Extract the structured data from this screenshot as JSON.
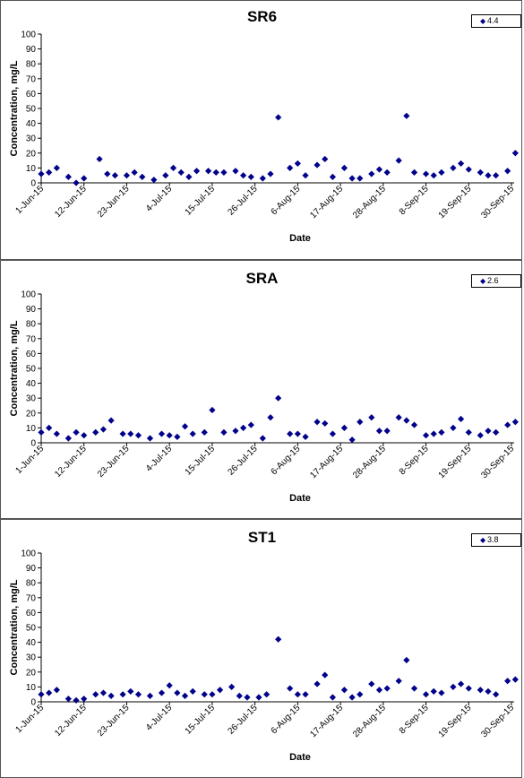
{
  "marker_color": "#00008b",
  "chart_data": [
    {
      "type": "scatter",
      "title": "SR6",
      "xlabel": "Date",
      "ylabel": "Concentration, mg/L",
      "ylim": [
        0,
        100
      ],
      "yticks": [
        "0",
        "10",
        "20",
        "30",
        "40",
        "50",
        "60",
        "70",
        "80",
        "90",
        "100"
      ],
      "xticks": [
        "1-Jun-15",
        "12-Jun-15",
        "23-Jun-15",
        "4-Jul-15",
        "15-Jul-15",
        "26-Jul-15",
        "6-Aug-15",
        "17-Aug-15",
        "28-Aug-15",
        "8-Sep-15",
        "19-Sep-15",
        "30-Sep-15"
      ],
      "x_start": "1-Jun-15",
      "x_end": "30-Sep-15",
      "legend": {
        "label": "4.4",
        "position": "top-right"
      },
      "grid": false,
      "series": [
        {
          "points": [
            [
              "2015-06-01",
              6
            ],
            [
              "2015-06-03",
              7
            ],
            [
              "2015-06-05",
              10
            ],
            [
              "2015-06-08",
              4
            ],
            [
              "2015-06-10",
              0
            ],
            [
              "2015-06-12",
              3
            ],
            [
              "2015-06-16",
              16
            ],
            [
              "2015-06-18",
              6
            ],
            [
              "2015-06-20",
              5
            ],
            [
              "2015-06-23",
              5
            ],
            [
              "2015-06-25",
              7
            ],
            [
              "2015-06-27",
              4
            ],
            [
              "2015-06-30",
              2
            ],
            [
              "2015-07-03",
              5
            ],
            [
              "2015-07-05",
              10
            ],
            [
              "2015-07-07",
              7
            ],
            [
              "2015-07-09",
              4
            ],
            [
              "2015-07-11",
              8
            ],
            [
              "2015-07-14",
              8
            ],
            [
              "2015-07-16",
              7
            ],
            [
              "2015-07-18",
              7
            ],
            [
              "2015-07-21",
              8
            ],
            [
              "2015-07-23",
              5
            ],
            [
              "2015-07-25",
              4
            ],
            [
              "2015-07-28",
              3
            ],
            [
              "2015-07-30",
              6
            ],
            [
              "2015-08-01",
              44
            ],
            [
              "2015-08-04",
              10
            ],
            [
              "2015-08-06",
              13
            ],
            [
              "2015-08-08",
              5
            ],
            [
              "2015-08-11",
              12
            ],
            [
              "2015-08-13",
              16
            ],
            [
              "2015-08-15",
              4
            ],
            [
              "2015-08-18",
              10
            ],
            [
              "2015-08-20",
              3
            ],
            [
              "2015-08-22",
              3
            ],
            [
              "2015-08-25",
              6
            ],
            [
              "2015-08-27",
              9
            ],
            [
              "2015-08-29",
              7
            ],
            [
              "2015-09-01",
              15
            ],
            [
              "2015-09-03",
              45
            ],
            [
              "2015-09-05",
              7
            ],
            [
              "2015-09-08",
              6
            ],
            [
              "2015-09-10",
              5
            ],
            [
              "2015-09-12",
              7
            ],
            [
              "2015-09-15",
              10
            ],
            [
              "2015-09-17",
              13
            ],
            [
              "2015-09-19",
              9
            ],
            [
              "2015-09-22",
              7
            ],
            [
              "2015-09-24",
              5
            ],
            [
              "2015-09-26",
              5
            ],
            [
              "2015-09-29",
              8
            ],
            [
              "2015-10-01",
              20
            ]
          ]
        }
      ]
    },
    {
      "type": "scatter",
      "title": "SRA",
      "xlabel": "Date",
      "ylabel": "Concentration, mg/L",
      "ylim": [
        0,
        100
      ],
      "yticks": [
        "0",
        "10",
        "20",
        "30",
        "40",
        "50",
        "60",
        "70",
        "80",
        "90",
        "100"
      ],
      "xticks": [
        "1-Jun-15",
        "12-Jun-15",
        "23-Jun-15",
        "4-Jul-15",
        "15-Jul-15",
        "26-Jul-15",
        "6-Aug-15",
        "17-Aug-15",
        "28-Aug-15",
        "8-Sep-15",
        "19-Sep-15",
        "30-Sep-15"
      ],
      "x_start": "1-Jun-15",
      "x_end": "30-Sep-15",
      "legend": {
        "label": "2.6",
        "position": "top-right"
      },
      "grid": false,
      "series": [
        {
          "points": [
            [
              "2015-06-01",
              7
            ],
            [
              "2015-06-03",
              10
            ],
            [
              "2015-06-05",
              6
            ],
            [
              "2015-06-08",
              3
            ],
            [
              "2015-06-10",
              7
            ],
            [
              "2015-06-12",
              5
            ],
            [
              "2015-06-15",
              7
            ],
            [
              "2015-06-17",
              9
            ],
            [
              "2015-06-19",
              15
            ],
            [
              "2015-06-22",
              6
            ],
            [
              "2015-06-24",
              6
            ],
            [
              "2015-06-26",
              5
            ],
            [
              "2015-06-29",
              3
            ],
            [
              "2015-07-02",
              6
            ],
            [
              "2015-07-04",
              5
            ],
            [
              "2015-07-06",
              4
            ],
            [
              "2015-07-08",
              11
            ],
            [
              "2015-07-10",
              6
            ],
            [
              "2015-07-13",
              7
            ],
            [
              "2015-07-15",
              22
            ],
            [
              "2015-07-18",
              7
            ],
            [
              "2015-07-21",
              8
            ],
            [
              "2015-07-23",
              10
            ],
            [
              "2015-07-25",
              12
            ],
            [
              "2015-07-28",
              3
            ],
            [
              "2015-07-30",
              17
            ],
            [
              "2015-08-01",
              30
            ],
            [
              "2015-08-04",
              6
            ],
            [
              "2015-08-06",
              6
            ],
            [
              "2015-08-08",
              4
            ],
            [
              "2015-08-11",
              14
            ],
            [
              "2015-08-13",
              13
            ],
            [
              "2015-08-15",
              6
            ],
            [
              "2015-08-18",
              10
            ],
            [
              "2015-08-20",
              2
            ],
            [
              "2015-08-22",
              14
            ],
            [
              "2015-08-25",
              17
            ],
            [
              "2015-08-27",
              8
            ],
            [
              "2015-08-29",
              8
            ],
            [
              "2015-09-01",
              17
            ],
            [
              "2015-09-03",
              15
            ],
            [
              "2015-09-05",
              12
            ],
            [
              "2015-09-08",
              5
            ],
            [
              "2015-09-10",
              6
            ],
            [
              "2015-09-12",
              7
            ],
            [
              "2015-09-15",
              10
            ],
            [
              "2015-09-17",
              16
            ],
            [
              "2015-09-19",
              7
            ],
            [
              "2015-09-22",
              5
            ],
            [
              "2015-09-24",
              8
            ],
            [
              "2015-09-26",
              7
            ],
            [
              "2015-09-29",
              12
            ],
            [
              "2015-10-01",
              14
            ]
          ]
        }
      ]
    },
    {
      "type": "scatter",
      "title": "ST1",
      "xlabel": "Date",
      "ylabel": "Concentration, mg/L",
      "ylim": [
        0,
        100
      ],
      "yticks": [
        "0",
        "10",
        "20",
        "30",
        "40",
        "50",
        "60",
        "70",
        "80",
        "90",
        "100"
      ],
      "xticks": [
        "1-Jun-15",
        "12-Jun-15",
        "23-Jun-15",
        "4-Jul-15",
        "15-Jul-15",
        "26-Jul-15",
        "6-Aug-15",
        "17-Aug-15",
        "28-Aug-15",
        "8-Sep-15",
        "19-Sep-15",
        "30-Sep-15"
      ],
      "x_start": "1-Jun-15",
      "x_end": "30-Sep-15",
      "legend": {
        "label": "3.8",
        "position": "top-right"
      },
      "grid": false,
      "series": [
        {
          "points": [
            [
              "2015-06-01",
              5
            ],
            [
              "2015-06-03",
              6
            ],
            [
              "2015-06-05",
              8
            ],
            [
              "2015-06-08",
              2
            ],
            [
              "2015-06-10",
              1
            ],
            [
              "2015-06-12",
              2
            ],
            [
              "2015-06-15",
              5
            ],
            [
              "2015-06-17",
              6
            ],
            [
              "2015-06-19",
              4
            ],
            [
              "2015-06-22",
              5
            ],
            [
              "2015-06-24",
              7
            ],
            [
              "2015-06-26",
              5
            ],
            [
              "2015-06-29",
              4
            ],
            [
              "2015-07-02",
              6
            ],
            [
              "2015-07-04",
              11
            ],
            [
              "2015-07-06",
              6
            ],
            [
              "2015-07-08",
              4
            ],
            [
              "2015-07-10",
              7
            ],
            [
              "2015-07-13",
              5
            ],
            [
              "2015-07-15",
              5
            ],
            [
              "2015-07-17",
              8
            ],
            [
              "2015-07-20",
              10
            ],
            [
              "2015-07-22",
              4
            ],
            [
              "2015-07-24",
              3
            ],
            [
              "2015-07-27",
              3
            ],
            [
              "2015-07-29",
              5
            ],
            [
              "2015-08-01",
              42
            ],
            [
              "2015-08-04",
              9
            ],
            [
              "2015-08-06",
              5
            ],
            [
              "2015-08-08",
              5
            ],
            [
              "2015-08-11",
              12
            ],
            [
              "2015-08-13",
              18
            ],
            [
              "2015-08-15",
              3
            ],
            [
              "2015-08-18",
              8
            ],
            [
              "2015-08-20",
              3
            ],
            [
              "2015-08-22",
              5
            ],
            [
              "2015-08-25",
              12
            ],
            [
              "2015-08-27",
              8
            ],
            [
              "2015-08-29",
              9
            ],
            [
              "2015-09-01",
              14
            ],
            [
              "2015-09-03",
              28
            ],
            [
              "2015-09-05",
              9
            ],
            [
              "2015-09-08",
              5
            ],
            [
              "2015-09-10",
              7
            ],
            [
              "2015-09-12",
              6
            ],
            [
              "2015-09-15",
              10
            ],
            [
              "2015-09-17",
              12
            ],
            [
              "2015-09-19",
              9
            ],
            [
              "2015-09-22",
              8
            ],
            [
              "2015-09-24",
              7
            ],
            [
              "2015-09-26",
              5
            ],
            [
              "2015-09-29",
              14
            ],
            [
              "2015-10-01",
              15
            ]
          ]
        }
      ]
    }
  ]
}
